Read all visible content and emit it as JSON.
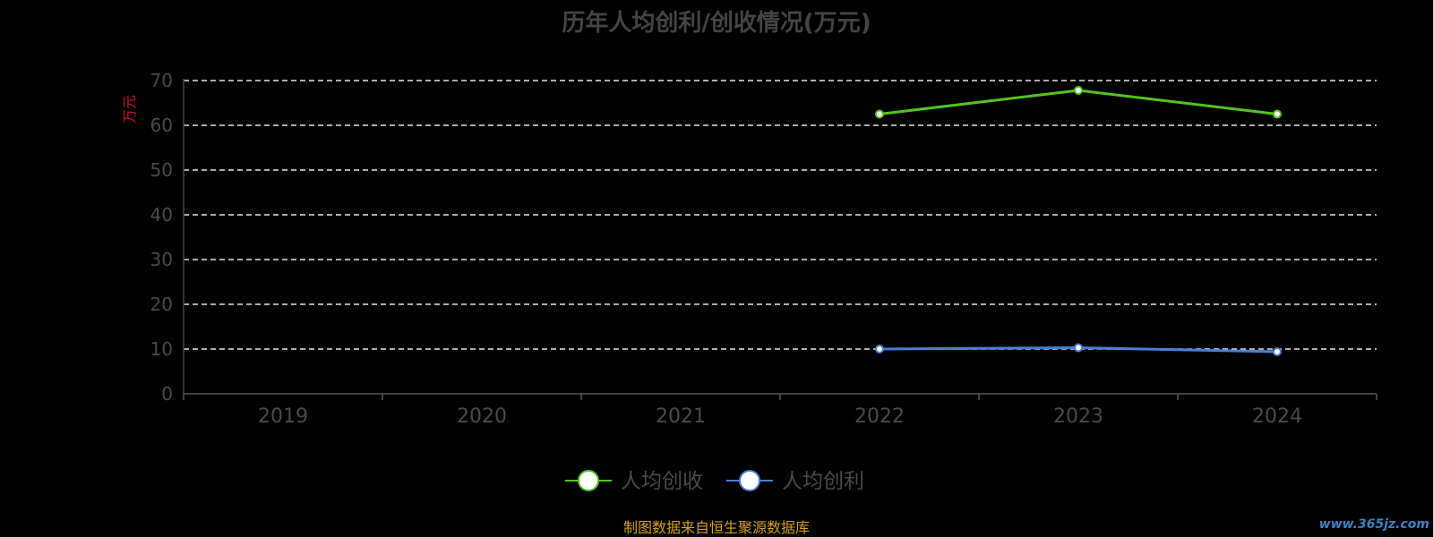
{
  "chart_data": {
    "type": "line",
    "title": "历年人均创利/创收情况(万元)",
    "ylabel": "万元",
    "xlabel": "",
    "categories": [
      "2019",
      "2020",
      "2021",
      "2022",
      "2023",
      "2024"
    ],
    "ylim": [
      0,
      70
    ],
    "yticks": [
      0,
      10,
      20,
      30,
      40,
      50,
      60,
      70
    ],
    "grid": true,
    "legend_position": "bottom",
    "series": [
      {
        "name": "人均创收",
        "color": "#52c41a",
        "values": [
          null,
          null,
          null,
          62.5,
          67.8,
          62.5
        ]
      },
      {
        "name": "人均创利",
        "color": "#4a7fd6",
        "values": [
          null,
          null,
          null,
          10.0,
          10.3,
          9.4
        ]
      }
    ]
  },
  "footer": {
    "source": "制图数据来自恒生聚源数据库",
    "watermark": "www.365jz.com"
  }
}
